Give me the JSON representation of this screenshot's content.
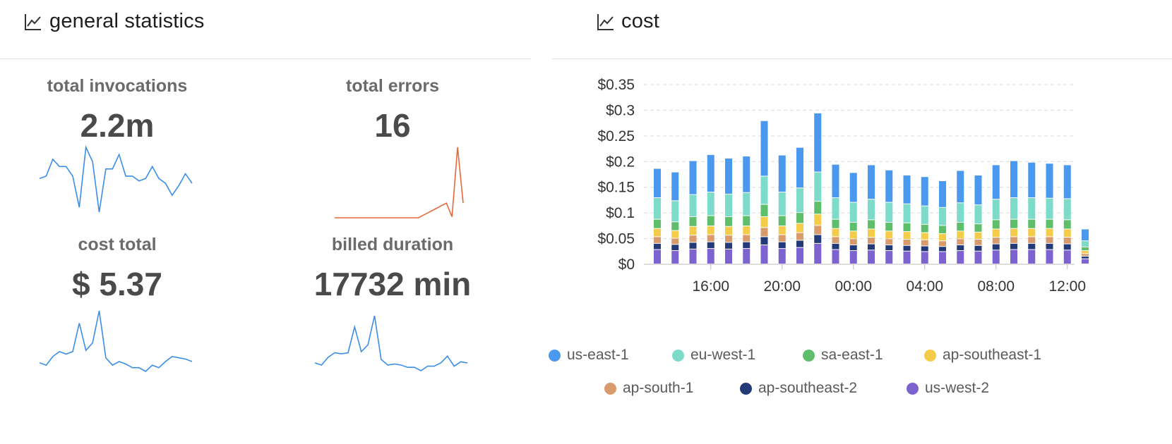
{
  "stats_panel": {
    "title": "general statistics",
    "icon": "line-chart-icon",
    "cards": [
      {
        "label": "total invocations",
        "value": "2.2m",
        "spark_color": "#3b8ee8",
        "spark": [
          6.8,
          6.9,
          7.6,
          7.3,
          7.3,
          6.9,
          5.6,
          8.1,
          7.5,
          5.4,
          7.2,
          7.2,
          7.8,
          6.9,
          6.9,
          6.7,
          6.8,
          7.3,
          6.8,
          6.6,
          6.1,
          6.5,
          7.0,
          6.6
        ]
      },
      {
        "label": "total errors",
        "value": "16",
        "spark_color": "#e8673a",
        "spark": [
          0,
          0,
          0,
          0,
          0,
          0,
          0,
          0,
          0,
          0,
          0,
          0,
          0,
          0,
          0,
          0,
          0.3,
          0.6,
          0.9,
          1.2,
          1.5,
          0.1,
          7.2,
          1.5
        ]
      },
      {
        "label": "cost total",
        "value": "$ 5.37",
        "spark_color": "#3b8ee8",
        "spark": [
          0.1,
          0.08,
          0.15,
          0.19,
          0.17,
          0.19,
          0.42,
          0.2,
          0.26,
          0.52,
          0.14,
          0.08,
          0.11,
          0.09,
          0.06,
          0.06,
          0.03,
          0.08,
          0.06,
          0.11,
          0.15,
          0.14,
          0.13,
          0.11
        ]
      },
      {
        "label": "billed duration",
        "value": "17732 min",
        "spark_color": "#3b8ee8",
        "spark": [
          0.1,
          0.08,
          0.15,
          0.19,
          0.18,
          0.19,
          0.42,
          0.2,
          0.26,
          0.52,
          0.13,
          0.08,
          0.09,
          0.08,
          0.06,
          0.06,
          0.03,
          0.07,
          0.07,
          0.1,
          0.16,
          0.07,
          0.11,
          0.1
        ]
      }
    ]
  },
  "cost_panel": {
    "title": "cost",
    "icon": "line-chart-icon",
    "legend_row1": [
      "us-east-1",
      "eu-west-1",
      "sa-east-1",
      "ap-southeast-1"
    ],
    "legend_row2": [
      "ap-south-1",
      "ap-southeast-2",
      "us-west-2"
    ]
  },
  "chart_data": {
    "type": "bar",
    "stacked": true,
    "title": "",
    "xlabel": "",
    "ylabel": "",
    "ylim": [
      0,
      0.35
    ],
    "yticks": [
      0,
      0.05,
      0.1,
      0.15,
      0.2,
      0.25,
      0.3,
      0.35
    ],
    "ytick_labels": [
      "$0",
      "$0.05",
      "$0.1",
      "$0.15",
      "$0.2",
      "$0.25",
      "$0.3",
      "$0.35"
    ],
    "xtick_labels": [
      "16:00",
      "20:00",
      "00:00",
      "04:00",
      "08:00",
      "12:00"
    ],
    "grid": true,
    "legend_position": "bottom",
    "categories": [
      "13:00",
      "14:00",
      "15:00",
      "16:00",
      "17:00",
      "18:00",
      "19:00",
      "20:00",
      "21:00",
      "22:00",
      "23:00",
      "00:00",
      "01:00",
      "02:00",
      "03:00",
      "04:00",
      "05:00",
      "06:00",
      "07:00",
      "08:00",
      "09:00",
      "10:00",
      "11:00",
      "12:00",
      "12:30"
    ],
    "series": [
      {
        "name": "us-west-2",
        "color": "#7d63d0",
        "values": [
          0.028,
          0.026,
          0.029,
          0.03,
          0.029,
          0.03,
          0.037,
          0.03,
          0.032,
          0.04,
          0.028,
          0.026,
          0.027,
          0.026,
          0.025,
          0.024,
          0.024,
          0.026,
          0.025,
          0.027,
          0.028,
          0.028,
          0.028,
          0.027,
          0.01
        ]
      },
      {
        "name": "ap-southeast-2",
        "color": "#233a78",
        "values": [
          0.012,
          0.012,
          0.013,
          0.013,
          0.013,
          0.013,
          0.016,
          0.013,
          0.014,
          0.017,
          0.012,
          0.011,
          0.012,
          0.011,
          0.011,
          0.011,
          0.01,
          0.011,
          0.011,
          0.012,
          0.012,
          0.012,
          0.012,
          0.012,
          0.005
        ]
      },
      {
        "name": "ap-south-1",
        "color": "#d99a6c",
        "values": [
          0.013,
          0.012,
          0.014,
          0.014,
          0.014,
          0.014,
          0.018,
          0.014,
          0.015,
          0.018,
          0.013,
          0.012,
          0.013,
          0.012,
          0.012,
          0.012,
          0.011,
          0.012,
          0.012,
          0.013,
          0.013,
          0.013,
          0.013,
          0.013,
          0.005
        ]
      },
      {
        "name": "ap-southeast-1",
        "color": "#f4cc4a",
        "values": [
          0.016,
          0.015,
          0.017,
          0.017,
          0.017,
          0.017,
          0.021,
          0.017,
          0.018,
          0.022,
          0.016,
          0.015,
          0.016,
          0.015,
          0.015,
          0.014,
          0.014,
          0.015,
          0.014,
          0.016,
          0.016,
          0.016,
          0.016,
          0.016,
          0.006
        ]
      },
      {
        "name": "sa-east-1",
        "color": "#5fbe6a",
        "values": [
          0.018,
          0.017,
          0.019,
          0.02,
          0.019,
          0.02,
          0.024,
          0.02,
          0.021,
          0.025,
          0.018,
          0.017,
          0.018,
          0.017,
          0.017,
          0.016,
          0.016,
          0.017,
          0.016,
          0.018,
          0.018,
          0.018,
          0.018,
          0.018,
          0.007
        ]
      },
      {
        "name": "eu-west-1",
        "color": "#7ddbc9",
        "values": [
          0.042,
          0.041,
          0.043,
          0.046,
          0.044,
          0.045,
          0.055,
          0.046,
          0.048,
          0.057,
          0.042,
          0.039,
          0.04,
          0.039,
          0.037,
          0.036,
          0.035,
          0.038,
          0.037,
          0.04,
          0.042,
          0.042,
          0.041,
          0.041,
          0.012
        ]
      },
      {
        "name": "us-east-1",
        "color": "#4a99ef",
        "values": [
          0.057,
          0.056,
          0.066,
          0.073,
          0.07,
          0.071,
          0.108,
          0.072,
          0.079,
          0.115,
          0.065,
          0.058,
          0.067,
          0.063,
          0.056,
          0.057,
          0.052,
          0.063,
          0.058,
          0.067,
          0.072,
          0.069,
          0.068,
          0.066,
          0.023
        ]
      }
    ]
  }
}
